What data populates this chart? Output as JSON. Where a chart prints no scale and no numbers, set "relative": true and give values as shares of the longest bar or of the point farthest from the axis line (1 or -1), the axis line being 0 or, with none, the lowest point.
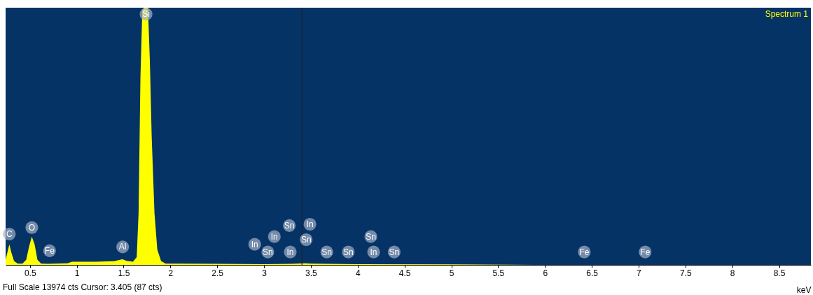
{
  "chart_data": {
    "type": "area",
    "relative": true,
    "xlabel": "keV",
    "xlim": [
      0.24,
      8.84
    ],
    "xticks": [
      0.5,
      1,
      1.5,
      2,
      2.5,
      3,
      3.5,
      4,
      4.5,
      5,
      5.5,
      6,
      6.5,
      7,
      7.5,
      8,
      8.5
    ],
    "series": [
      {
        "color": "#ffff00",
        "x": [
          0.24,
          0.26,
          0.28,
          0.3,
          0.33,
          0.37,
          0.42,
          0.46,
          0.49,
          0.52,
          0.55,
          0.58,
          0.62,
          0.7,
          0.9,
          0.95,
          1.2,
          1.4,
          1.46,
          1.49,
          1.53,
          1.6,
          1.64,
          1.66,
          1.68,
          1.7,
          1.72,
          1.74,
          1.76,
          1.78,
          1.8,
          1.83,
          1.86,
          1.9,
          1.95,
          2.5,
          3.0,
          3.3,
          3.44,
          3.5,
          4.0,
          5.0,
          5.6,
          6.0,
          8.84
        ],
        "values": [
          0.02,
          0.05,
          0.08,
          0.05,
          0.015,
          0.005,
          0.005,
          0.02,
          0.07,
          0.11,
          0.08,
          0.02,
          0.005,
          0.004,
          0.006,
          0.012,
          0.012,
          0.014,
          0.02,
          0.022,
          0.016,
          0.012,
          0.03,
          0.2,
          0.73,
          0.99,
          1,
          1,
          1,
          0.8,
          0.5,
          0.2,
          0.06,
          0.015,
          0.005,
          0.004,
          0.003,
          0.004,
          0.006,
          0.005,
          0.003,
          0.002,
          0.001,
          0,
          0
        ]
      }
    ],
    "ref_lines": [
      {
        "axis": "x",
        "value": 3.405,
        "color": "#1a2230"
      }
    ],
    "annotations": [
      "Spectrum 1",
      "Full Scale 13974 cts Cursor: 3.405  (87 cts)",
      {
        "text": "C",
        "x": 0.28,
        "y": 0.12
      },
      {
        "text": "O",
        "x": 0.52,
        "y": 0.145
      },
      {
        "text": "Fe",
        "x": 0.71,
        "y": 0.055
      },
      {
        "text": "Al",
        "x": 1.49,
        "y": 0.07
      },
      {
        "text": "Si",
        "x": 1.74,
        "y": 0.975
      },
      {
        "text": "In",
        "x": 2.9,
        "y": 0.08
      },
      {
        "text": "Sn",
        "x": 3.04,
        "y": 0.05
      },
      {
        "text": "In",
        "x": 3.11,
        "y": 0.11
      },
      {
        "text": "Sn",
        "x": 3.27,
        "y": 0.153
      },
      {
        "text": "In",
        "x": 3.28,
        "y": 0.05
      },
      {
        "text": "Sn",
        "x": 3.45,
        "y": 0.098
      },
      {
        "text": "In",
        "x": 3.49,
        "y": 0.158
      },
      {
        "text": "Sn",
        "x": 3.67,
        "y": 0.05
      },
      {
        "text": "Sn",
        "x": 3.9,
        "y": 0.05
      },
      {
        "text": "Sn",
        "x": 4.14,
        "y": 0.11
      },
      {
        "text": "In",
        "x": 4.17,
        "y": 0.05
      },
      {
        "text": "Sn",
        "x": 4.39,
        "y": 0.05
      },
      {
        "text": "Fe",
        "x": 6.42,
        "y": 0.05
      },
      {
        "text": "Fe",
        "x": 7.07,
        "y": 0.05
      }
    ]
  }
}
